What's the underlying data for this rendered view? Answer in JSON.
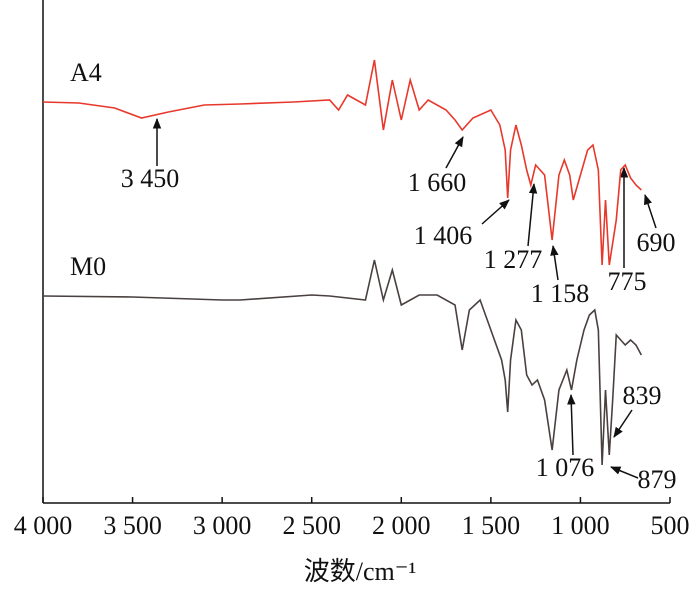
{
  "chart_data": {
    "type": "line",
    "xlabel": "波数/cm⁻¹",
    "xlim": [
      4000,
      500
    ],
    "xticks": [
      {
        "value": 4000,
        "label": "4 000"
      },
      {
        "value": 3500,
        "label": "3 500"
      },
      {
        "value": 3000,
        "label": "3 000"
      },
      {
        "value": 2500,
        "label": "2 500"
      },
      {
        "value": 2000,
        "label": "2 000"
      },
      {
        "value": 1500,
        "label": "1 500"
      },
      {
        "value": 1000,
        "label": "1 000"
      },
      500
    ],
    "ylim": [
      0,
      500
    ],
    "series": [
      {
        "name": "A4",
        "color": "#e8382b",
        "x": [
          4000,
          3800,
          3600,
          3450,
          3300,
          3100,
          2900,
          2600,
          2400,
          2350,
          2300,
          2200,
          2150,
          2100,
          2050,
          2000,
          1950,
          1900,
          1850,
          1750,
          1700,
          1660,
          1600,
          1500,
          1450,
          1420,
          1406,
          1390,
          1360,
          1330,
          1300,
          1277,
          1250,
          1200,
          1158,
          1120,
          1090,
          1060,
          1040,
          1000,
          960,
          930,
          900,
          879,
          860,
          839,
          800,
          775,
          750,
          720,
          690,
          660
        ],
        "values": [
          401,
          400,
          395,
          385,
          391,
          398,
          399,
          401,
          403,
          393,
          408,
          398,
          443,
          373,
          423,
          383,
          423,
          393,
          403,
          393,
          383,
          373,
          385,
          393,
          378,
          353,
          305,
          353,
          378,
          358,
          333,
          318,
          338,
          328,
          263,
          328,
          343,
          328,
          303,
          328,
          353,
          358,
          333,
          238,
          303,
          238,
          283,
          333,
          338,
          325,
          318,
          313
        ]
      },
      {
        "name": "M0",
        "color": "#4a4040",
        "x": [
          4000,
          3500,
          3000,
          2900,
          2500,
          2400,
          2200,
          2150,
          2100,
          2050,
          2000,
          1900,
          1800,
          1700,
          1660,
          1620,
          1560,
          1500,
          1440,
          1420,
          1406,
          1390,
          1360,
          1330,
          1300,
          1270,
          1240,
          1200,
          1158,
          1120,
          1076,
          1050,
          1020,
          980,
          950,
          920,
          900,
          879,
          860,
          839,
          820,
          800,
          775,
          750,
          720,
          690,
          660
        ],
        "values": [
          207,
          206,
          203,
          203,
          208,
          207,
          203,
          243,
          203,
          233,
          198,
          208,
          208,
          198,
          153,
          193,
          203,
          173,
          143,
          123,
          91,
          143,
          183,
          173,
          128,
          118,
          123,
          103,
          53,
          113,
          133,
          113,
          143,
          173,
          188,
          193,
          173,
          38,
          113,
          48,
          103,
          168,
          163,
          158,
          163,
          158,
          148
        ]
      }
    ],
    "annotations": [
      "3 450",
      "1 660",
      "1 406",
      "1 277",
      "1 158",
      "775",
      "690",
      "1 076",
      "839",
      "879"
    ]
  }
}
